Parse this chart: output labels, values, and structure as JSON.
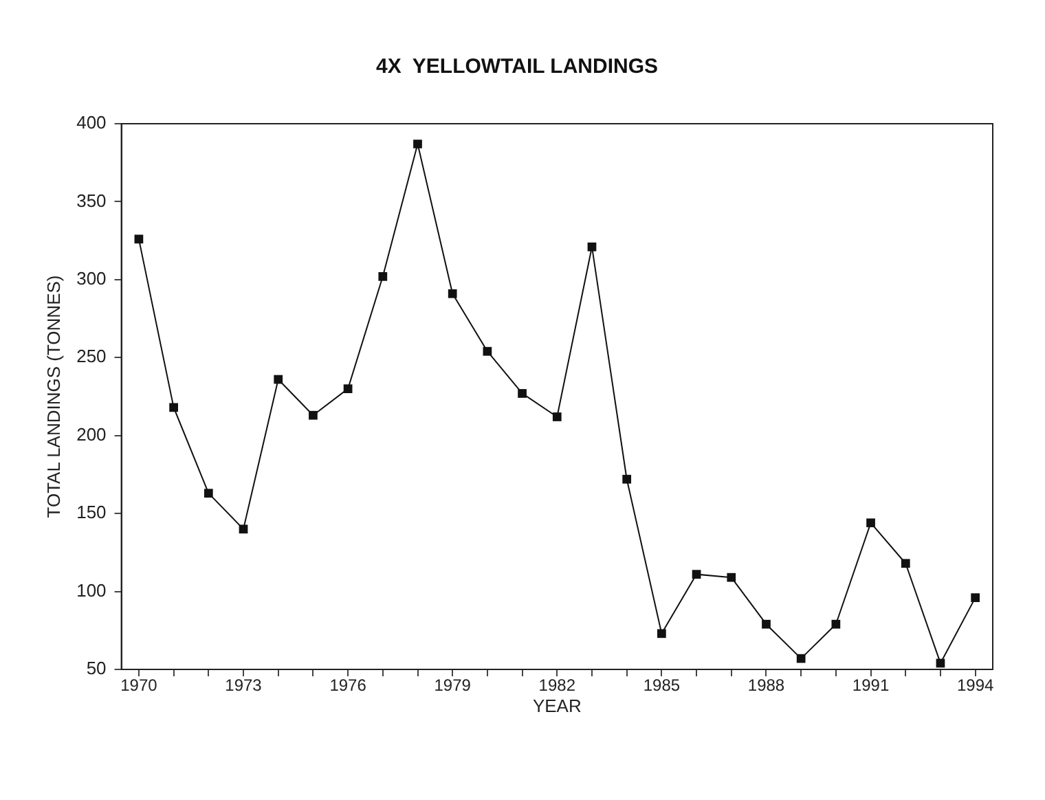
{
  "chart_data": {
    "type": "line",
    "title": "4X  YELLOWTAIL LANDINGS",
    "xlabel": "YEAR",
    "ylabel": "TOTAL LANDINGS (TONNES)",
    "x": [
      1970,
      1971,
      1972,
      1973,
      1974,
      1975,
      1976,
      1977,
      1978,
      1979,
      1980,
      1981,
      1982,
      1983,
      1984,
      1985,
      1986,
      1987,
      1988,
      1989,
      1990,
      1991,
      1992,
      1993,
      1994
    ],
    "series": [
      {
        "color": "#111111",
        "values": [
          326,
          218,
          163,
          140,
          236,
          213,
          230,
          302,
          387,
          291,
          254,
          227,
          212,
          321,
          172,
          73,
          111,
          109,
          79,
          57,
          79,
          144,
          118,
          54,
          96
        ]
      }
    ],
    "xlim": [
      1969.5,
      1994.5
    ],
    "xticks": [
      1970,
      {
        "value": 1971,
        "label": null
      },
      {
        "value": 1972,
        "label": null
      },
      1973,
      {
        "value": 1974,
        "label": null
      },
      {
        "value": 1975,
        "label": null
      },
      1976,
      {
        "value": 1977,
        "label": null
      },
      {
        "value": 1978,
        "label": null
      },
      1979,
      {
        "value": 1980,
        "label": null
      },
      {
        "value": 1981,
        "label": null
      },
      1982,
      {
        "value": 1983,
        "label": null
      },
      {
        "value": 1984,
        "label": null
      },
      1985,
      {
        "value": 1986,
        "label": null
      },
      {
        "value": 1987,
        "label": null
      },
      1988,
      {
        "value": 1989,
        "label": null
      },
      {
        "value": 1990,
        "label": null
      },
      1991,
      {
        "value": 1992,
        "label": null
      },
      {
        "value": 1993,
        "label": null
      },
      1994
    ],
    "ylim": [
      50,
      400
    ],
    "yticks": [
      50,
      100,
      150,
      200,
      250,
      300,
      350,
      400
    ],
    "grid": false,
    "legend": false,
    "marker": "square",
    "line_style": "solid"
  }
}
